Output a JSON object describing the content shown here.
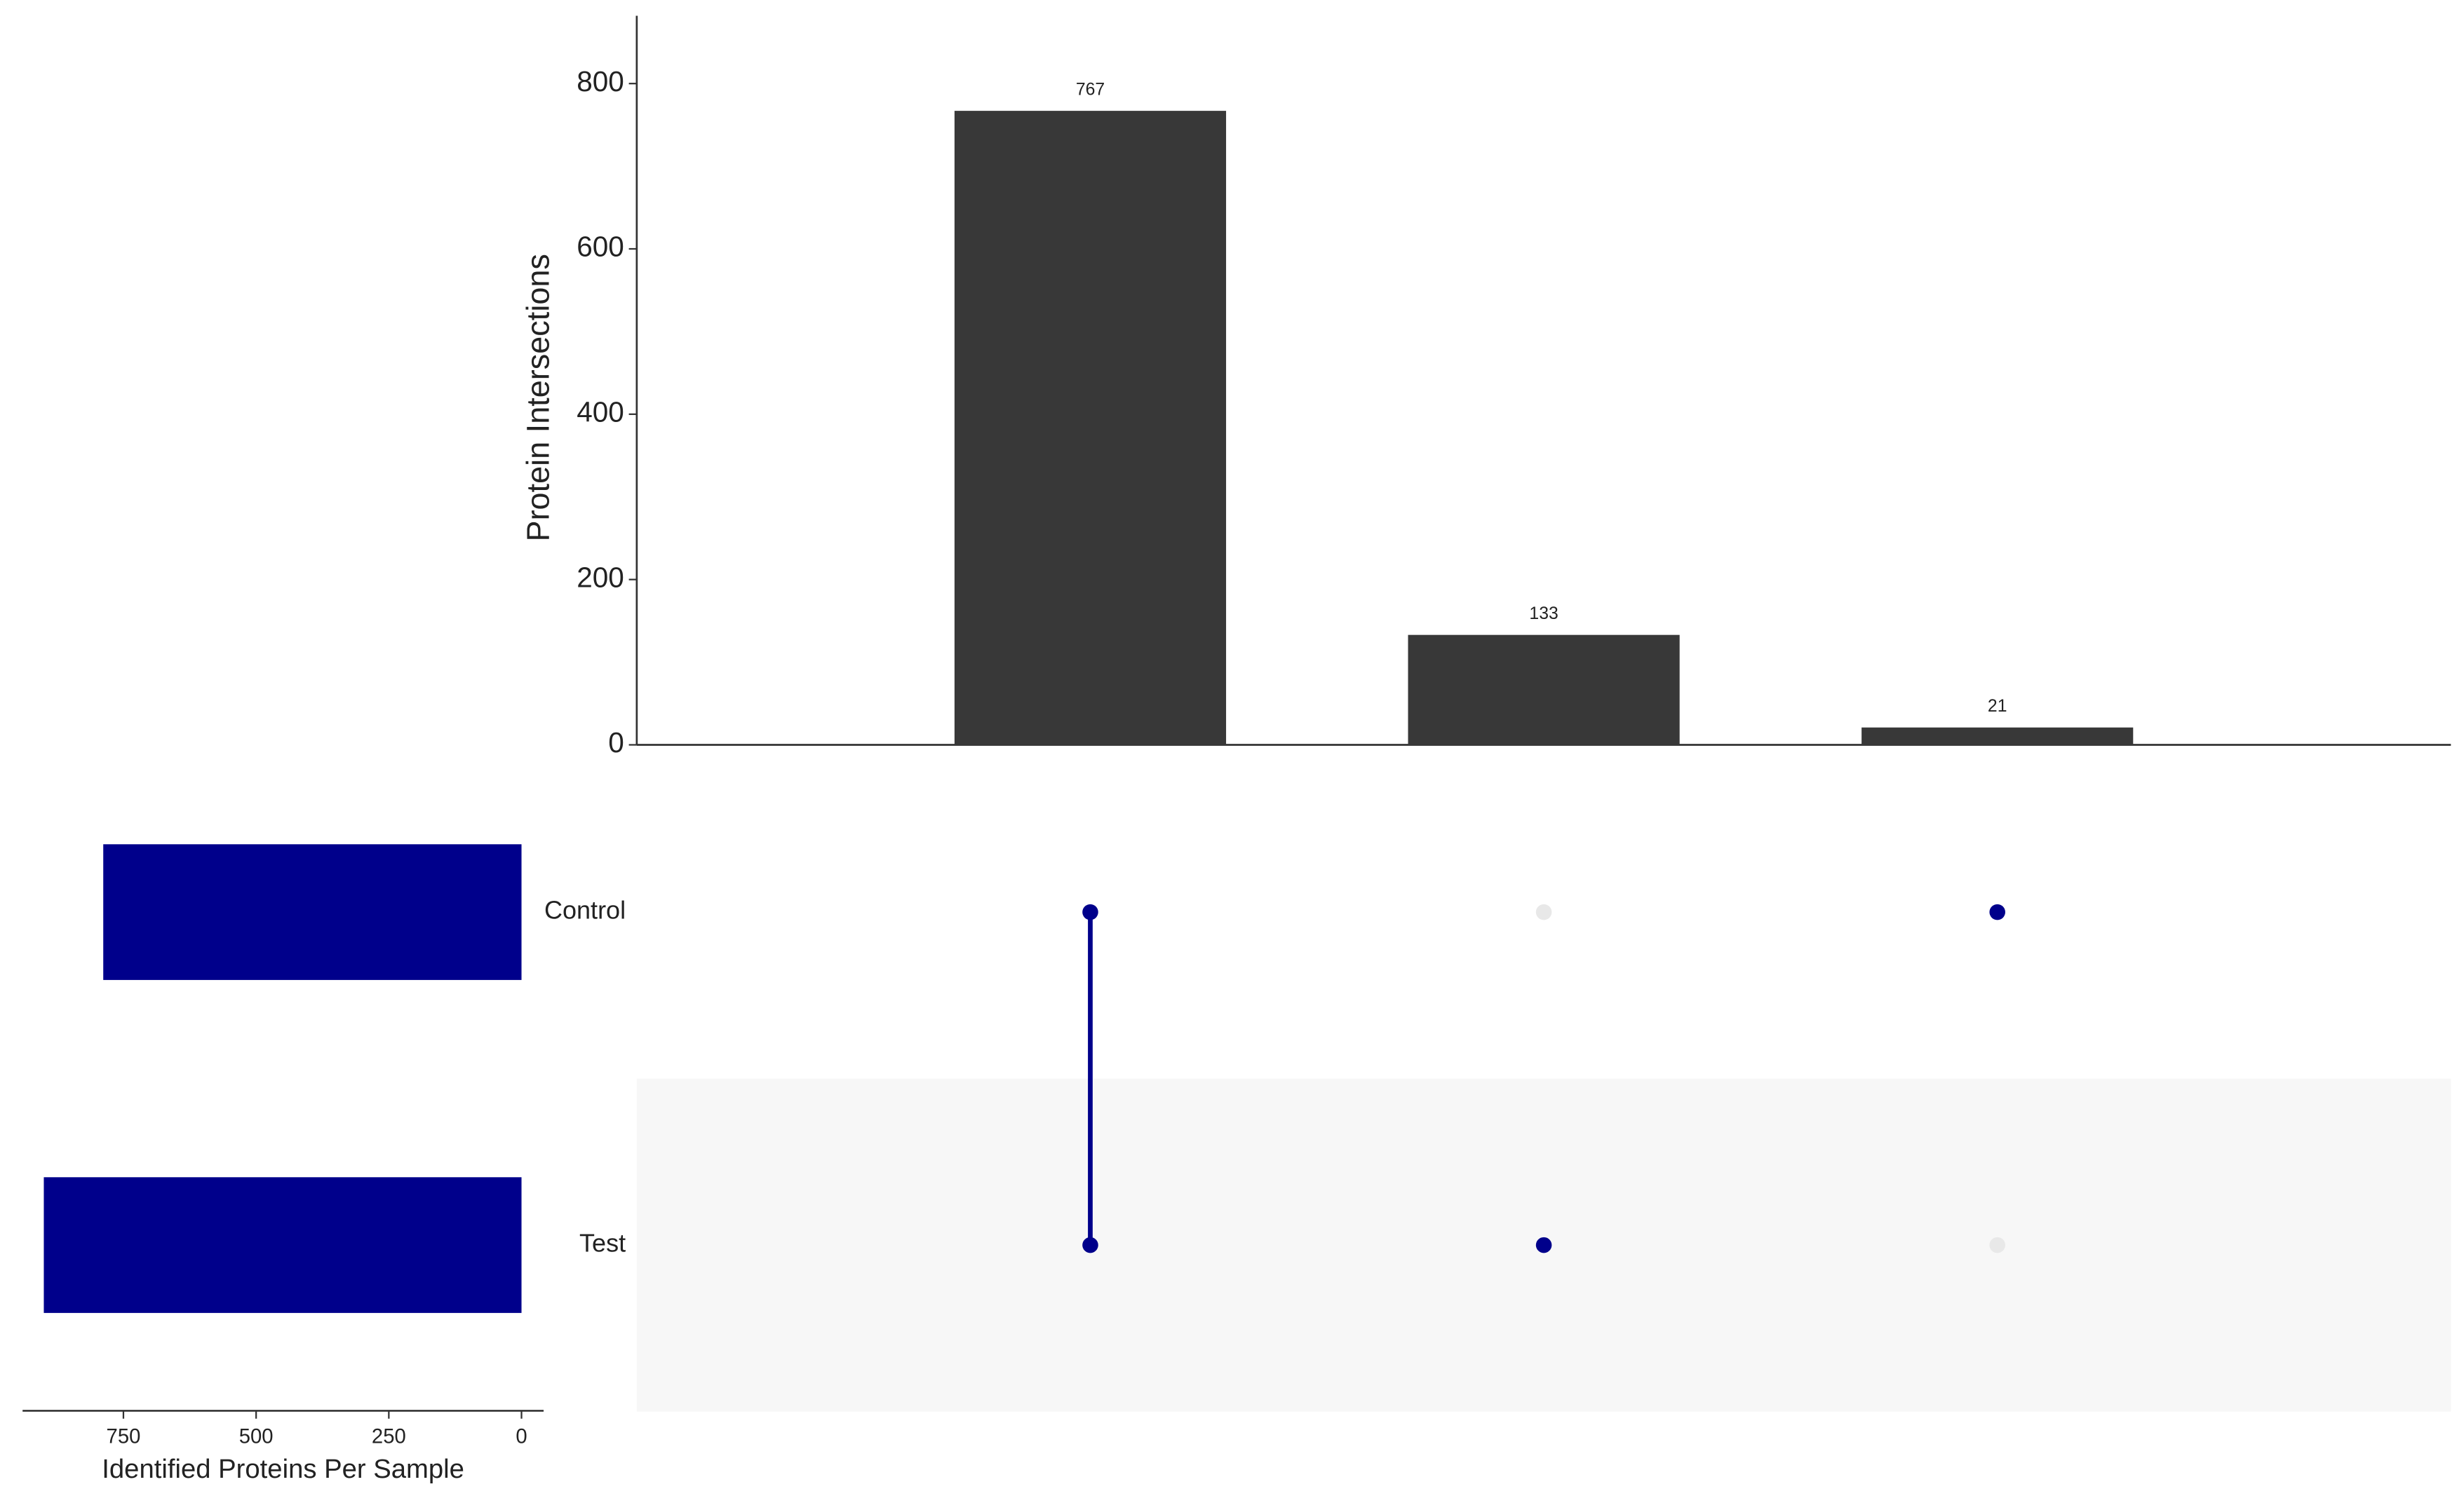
{
  "chart_data": {
    "type": "upset",
    "ylabel": "Protein Intersections",
    "values": [
      767,
      133,
      21
    ],
    "color": "#383838",
    "ylim": [
      0,
      882
    ],
    "yticks": [
      0,
      200,
      400,
      600,
      800
    ],
    "sets": {
      "names": [
        "Control",
        "Test"
      ],
      "values": [
        788,
        900
      ],
      "color": "#00008b",
      "xlabel": "Identified Proteins Per Sample",
      "xlim": [
        940,
        0
      ],
      "xticks": [
        750,
        500,
        250,
        0
      ]
    },
    "matrix": [
      [
        true,
        false,
        true
      ],
      [
        true,
        true,
        false
      ]
    ],
    "dot_color": "#00008b",
    "inactive_color": "#e8e8e8",
    "shade_color": "#f7f7f7"
  }
}
